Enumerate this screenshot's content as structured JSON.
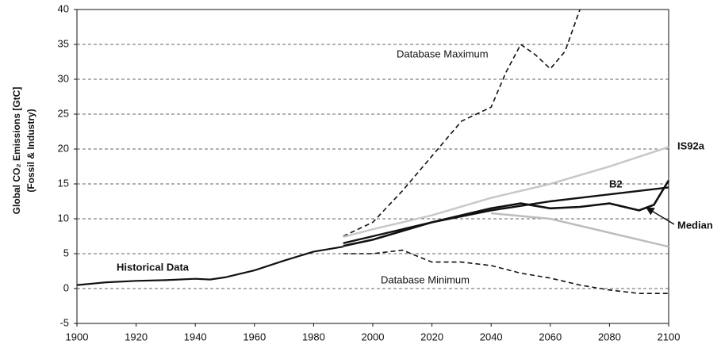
{
  "chart_data": {
    "type": "line",
    "ylabel": [
      "Global CO₂ Emissions  [GtC]",
      "(Fossil & Industry)"
    ],
    "xlim": [
      1900,
      2100
    ],
    "xticks": [
      1900,
      1920,
      1940,
      1960,
      1980,
      2000,
      2020,
      2040,
      2060,
      2080,
      2100
    ],
    "ylim": [
      -5,
      40
    ],
    "yticks": [
      -5,
      0,
      5,
      10,
      15,
      20,
      25,
      30,
      35,
      40
    ],
    "grid": true,
    "series": [
      {
        "name": "Historical Data",
        "color": "#111111",
        "style": "solid",
        "x": [
          1900,
          1910,
          1920,
          1930,
          1940,
          1945,
          1950,
          1960,
          1970,
          1980,
          1990
        ],
        "values": [
          0.5,
          0.9,
          1.1,
          1.2,
          1.4,
          1.3,
          1.6,
          2.6,
          4.0,
          5.3,
          6.0
        ]
      },
      {
        "name": "Database Maximum",
        "color": "#111111",
        "style": "dashed",
        "x": [
          1990,
          2000,
          2010,
          2020,
          2030,
          2040,
          2045,
          2050,
          2055,
          2060,
          2065,
          2070
        ],
        "values": [
          7.5,
          9.5,
          14,
          19,
          24,
          26,
          31,
          35,
          33.5,
          31.5,
          34,
          40
        ]
      },
      {
        "name": "Database Minimum",
        "color": "#111111",
        "style": "dashed",
        "x": [
          1990,
          2000,
          2010,
          2020,
          2030,
          2040,
          2050,
          2060,
          2070,
          2080,
          2090,
          2100
        ],
        "values": [
          5,
          5,
          5.5,
          3.8,
          3.8,
          3.3,
          2.2,
          1.5,
          0.5,
          -0.2,
          -0.7,
          -0.7
        ]
      },
      {
        "name": "IS92a",
        "color": "#c8c8c8",
        "style": "solid",
        "x": [
          1990,
          2000,
          2020,
          2040,
          2060,
          2080,
          2100
        ],
        "values": [
          7.4,
          8.5,
          10.5,
          13,
          15,
          17.5,
          20.3
        ]
      },
      {
        "color": "#bdbdbd",
        "style": "solid",
        "x": [
          2040,
          2060,
          2080,
          2100
        ],
        "values": [
          10.8,
          10,
          8,
          6
        ]
      },
      {
        "name": "B2",
        "color": "#111111",
        "style": "solid",
        "x": [
          1990,
          2000,
          2020,
          2040,
          2060,
          2080,
          2100
        ],
        "values": [
          6.5,
          7.5,
          9.5,
          11.2,
          12.5,
          13.5,
          14.5
        ]
      },
      {
        "name": "Median",
        "color": "#111111",
        "style": "solid",
        "x": [
          1990,
          2000,
          2020,
          2040,
          2050,
          2060,
          2070,
          2080,
          2090,
          2095,
          2100
        ],
        "values": [
          6.1,
          7.0,
          9.5,
          11.5,
          12.2,
          11.5,
          11.7,
          12.2,
          11.2,
          12,
          15.5
        ]
      }
    ]
  }
}
